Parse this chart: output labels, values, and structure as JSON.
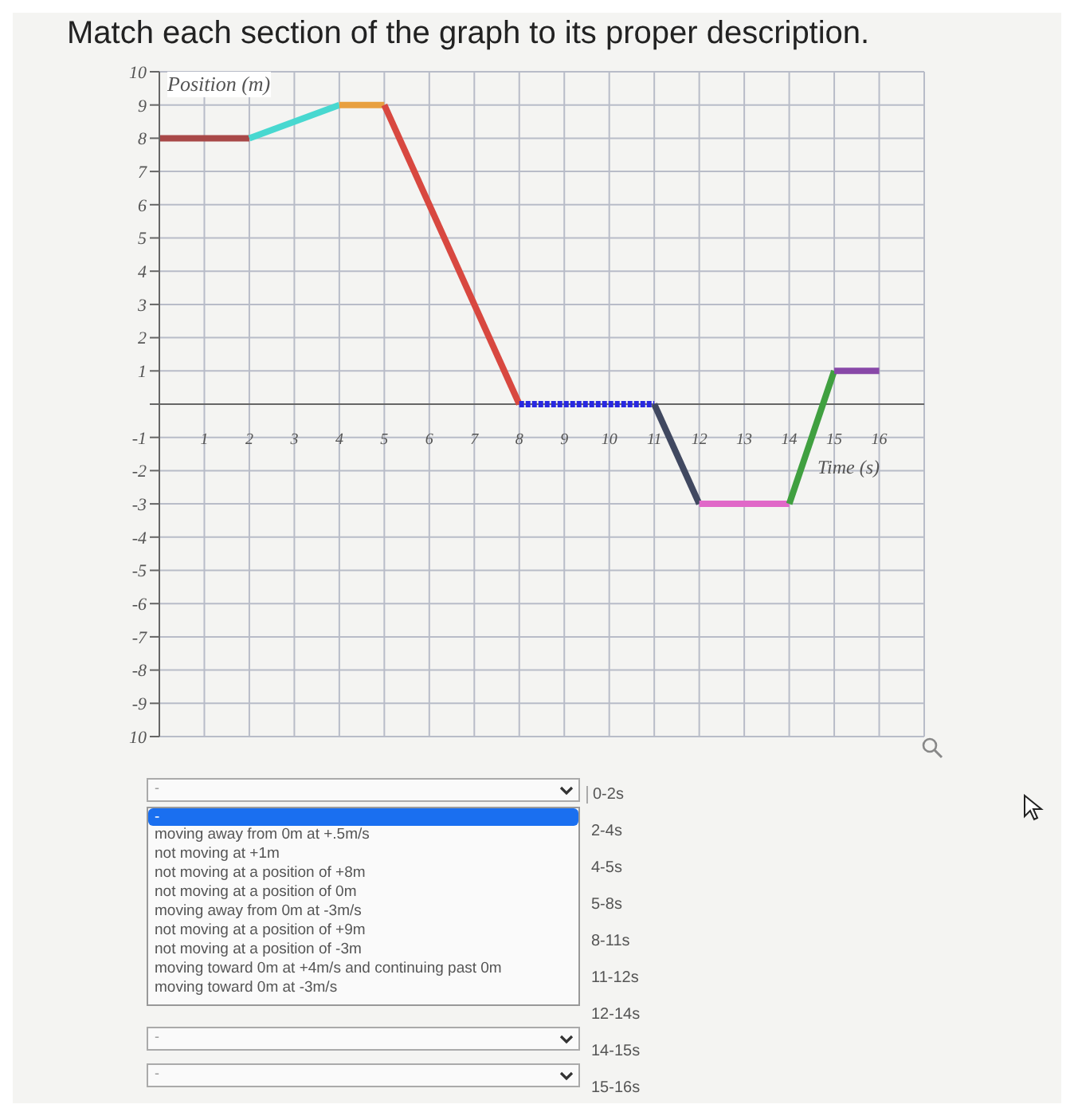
{
  "chart_data": {
    "type": "line",
    "title": "Match each section of the graph to its proper description.",
    "xlabel": "Time (s)",
    "ylabel": "Position (m)",
    "xlim": [
      0,
      17
    ],
    "xticks": [
      1,
      2,
      3,
      4,
      5,
      6,
      7,
      8,
      9,
      10,
      11,
      12,
      13,
      14,
      15,
      16
    ],
    "ylim": [
      -10,
      10
    ],
    "yticks": [
      10,
      9,
      8,
      7,
      6,
      5,
      4,
      3,
      2,
      1,
      {
        "value": 0,
        "label": null
      },
      -1,
      -2,
      -3,
      -4,
      -5,
      -6,
      -7,
      -8,
      -9,
      {
        "value": -10,
        "label": "10"
      }
    ],
    "grid": true,
    "marker": "none",
    "line_style": "solid",
    "series": [
      {
        "color": "#a84848",
        "x": [
          0,
          2
        ],
        "values": [
          8,
          8
        ]
      },
      {
        "color": "#48d8d0",
        "x": [
          2,
          4
        ],
        "values": [
          8,
          9
        ]
      },
      {
        "color": "#e8a040",
        "x": [
          4,
          5
        ],
        "values": [
          9,
          9
        ]
      },
      {
        "color": "#d84840",
        "x": [
          5,
          8
        ],
        "values": [
          9,
          0
        ]
      },
      {
        "color": "#2828e0",
        "x": [
          8,
          11
        ],
        "values": [
          0,
          0
        ],
        "line_style": "dotted"
      },
      {
        "color": "#404860",
        "x": [
          11,
          12
        ],
        "values": [
          0,
          -3
        ]
      },
      {
        "color": "#e068c8",
        "x": [
          12,
          14
        ],
        "values": [
          -3,
          -3
        ]
      },
      {
        "color": "#40a040",
        "x": [
          14,
          15
        ],
        "values": [
          -3,
          1
        ]
      },
      {
        "color": "#8848a8",
        "x": [
          15,
          16
        ],
        "values": [
          1,
          1
        ]
      }
    ],
    "annotations": [
      "0-2s",
      "2-4s",
      "4-5s",
      "5-8s",
      "8-11s",
      "11-12s",
      "12-14s",
      "14-15s",
      "15-16s",
      "-",
      "moving away from 0m at +.5m/s",
      "not moving at +1m",
      "not moving at a position of +8m",
      "not moving at a position of 0m",
      "moving away from 0m at -3m/s",
      "not moving at a position of +9m",
      "not moving at a position of -3m",
      "moving toward 0m at +4m/s and continuing past 0m",
      "moving toward 0m at -3m/s"
    ]
  }
}
